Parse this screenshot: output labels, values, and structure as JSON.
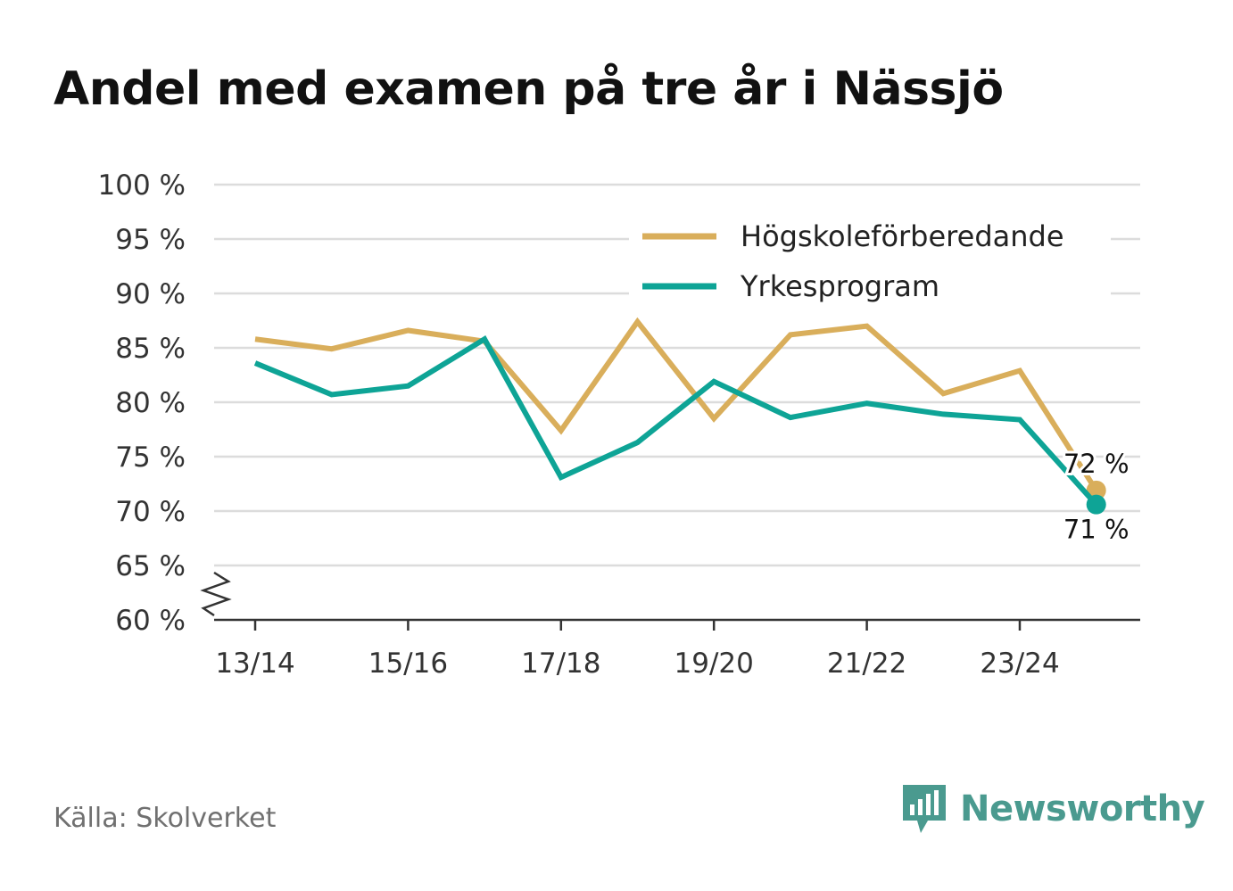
{
  "title": "Andel med examen på tre år i Nässjö",
  "source": "Källa: Skolverket",
  "brand": {
    "name": "Newsworthy",
    "icon": "newsworthy-logo-icon",
    "color": "#4a9a8f"
  },
  "chart_data": {
    "type": "line",
    "title": "Andel med examen på tre år i Nässjö",
    "xlabel": "",
    "ylabel": "",
    "x": [
      "13/14",
      "14/15",
      "15/16",
      "16/17",
      "17/18",
      "18/19",
      "19/20",
      "20/21",
      "21/22",
      "22/23",
      "23/24",
      "24/25"
    ],
    "x_tick_labels": [
      "13/14",
      "15/16",
      "17/18",
      "19/20",
      "21/22",
      "23/24"
    ],
    "ylim": [
      60,
      100
    ],
    "y_ticks": [
      60,
      65,
      70,
      75,
      80,
      85,
      90,
      95,
      100
    ],
    "y_tick_labels": [
      "60 %",
      "65 %",
      "70 %",
      "75 %",
      "80 %",
      "85 %",
      "90 %",
      "95 %",
      "100 %"
    ],
    "axis_break": true,
    "grid": true,
    "legend_position": "top-right",
    "series": [
      {
        "name": "Högskoleförberedande",
        "color": "#d9ae5b",
        "values": [
          85.8,
          84.9,
          86.6,
          85.6,
          77.4,
          87.4,
          78.5,
          86.2,
          87.0,
          80.8,
          82.9,
          71.9
        ],
        "end_label": "72 %"
      },
      {
        "name": "Yrkesprogram",
        "color": "#0ea496",
        "values": [
          83.6,
          80.7,
          81.5,
          85.8,
          73.1,
          76.3,
          81.9,
          78.6,
          79.9,
          78.9,
          78.4,
          70.6
        ],
        "end_label": "71 %"
      }
    ]
  }
}
